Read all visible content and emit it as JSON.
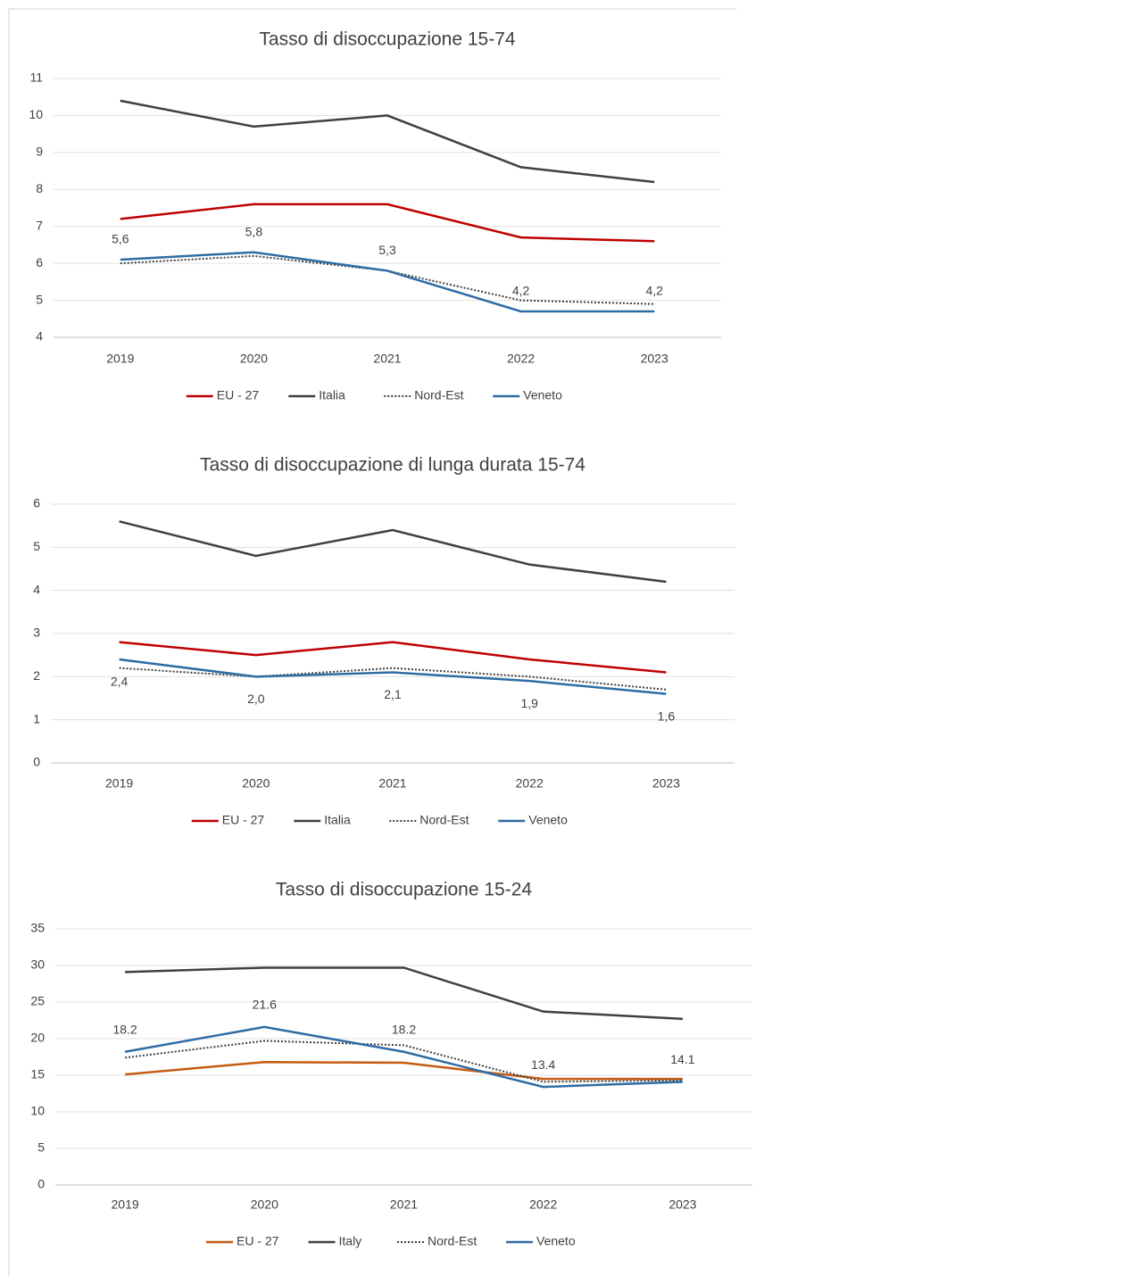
{
  "chart_data": [
    {
      "type": "line",
      "title": "Tasso di disoccupazione 15-74",
      "categories": [
        "2019",
        "2020",
        "2021",
        "2022",
        "2023"
      ],
      "series": [
        {
          "name": "EU - 27",
          "color": "#c00000",
          "values": [
            7.2,
            7.6,
            7.6,
            6.7,
            6.6
          ]
        },
        {
          "name": "Italia",
          "color": "#404040",
          "values": [
            10.4,
            9.7,
            10.0,
            8.6,
            8.2
          ]
        },
        {
          "name": "Nord-Est",
          "color": "#404040",
          "dash": "dotted",
          "values": [
            6.0,
            6.2,
            5.8,
            5.0,
            4.9
          ]
        },
        {
          "name": "Veneto",
          "color": "#2e6ca4",
          "values": [
            6.1,
            6.3,
            5.8,
            4.7,
            4.7
          ]
        }
      ],
      "annotations": [
        "5,6",
        "5,8",
        "5,3",
        "4,2",
        "4,2"
      ],
      "ylim": [
        4,
        11
      ],
      "yticks": [
        4,
        5,
        6,
        7,
        8,
        9,
        10,
        11
      ],
      "grid": true,
      "legend": "bottom"
    },
    {
      "type": "line",
      "title": "Tasso di disoccupazione di lunga durata 15-74",
      "categories": [
        "2019",
        "2020",
        "2021",
        "2022",
        "2023"
      ],
      "series": [
        {
          "name": "EU - 27",
          "color": "#c00000",
          "values": [
            2.8,
            2.5,
            2.8,
            2.4,
            2.1
          ]
        },
        {
          "name": "Italia",
          "color": "#404040",
          "values": [
            5.6,
            4.8,
            5.4,
            4.6,
            4.2
          ]
        },
        {
          "name": "Nord-Est",
          "color": "#404040",
          "dash": "dotted",
          "values": [
            2.2,
            2.0,
            2.2,
            2.0,
            1.7
          ]
        },
        {
          "name": "Veneto",
          "color": "#2e6ca4",
          "values": [
            2.4,
            2.0,
            2.1,
            1.9,
            1.6
          ],
          "value_labels": [
            "2,4",
            "2,0",
            "2,1",
            "1,9",
            "1,6"
          ]
        }
      ],
      "ylim": [
        0,
        6
      ],
      "yticks": [
        0,
        1,
        2,
        3,
        4,
        5,
        6
      ],
      "grid": true,
      "legend": "bottom"
    },
    {
      "type": "line",
      "title": "Tasso di disoccupazione 15-24",
      "categories": [
        "2019",
        "2020",
        "2021",
        "2022",
        "2023"
      ],
      "series": [
        {
          "name": "EU - 27",
          "color": "#c55a11",
          "values": [
            15.1,
            16.8,
            16.7,
            14.5,
            14.5
          ]
        },
        {
          "name": "Italy",
          "color": "#404040",
          "values": [
            29.1,
            29.7,
            29.7,
            23.7,
            22.7
          ]
        },
        {
          "name": "Nord-Est",
          "color": "#404040",
          "dash": "dotted",
          "values": [
            17.4,
            19.7,
            19.1,
            14.1,
            14.3
          ]
        },
        {
          "name": "Veneto",
          "color": "#2e6ca4",
          "values": [
            18.2,
            21.6,
            18.2,
            13.4,
            14.1
          ],
          "value_labels": [
            "18.2",
            "21.6",
            "18.2",
            "13.4",
            "14.1"
          ]
        }
      ],
      "ylim": [
        0,
        35
      ],
      "yticks": [
        0,
        5,
        10,
        15,
        20,
        25,
        30,
        35
      ],
      "grid": true,
      "legend": "bottom"
    }
  ]
}
